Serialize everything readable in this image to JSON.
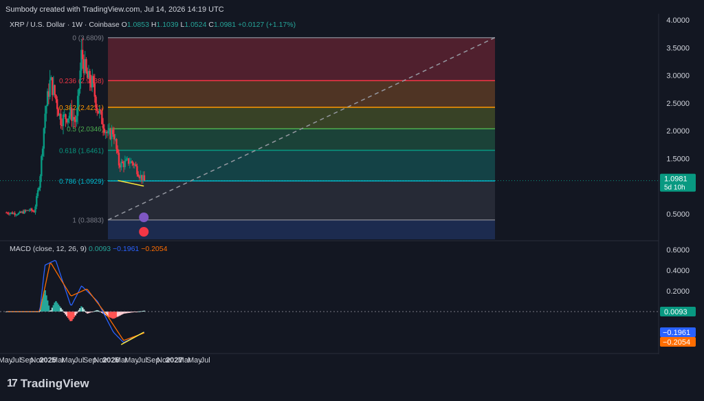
{
  "header": {
    "created_by": "Sumbody created with TradingView.com, Jul 14, 2026 14:19 UTC"
  },
  "legend": {
    "symbol": "XRP / U.S. Dollar · 1W · Coinbase",
    "open_label": "O",
    "open": "1.0853",
    "high_label": "H",
    "high": "1.1039",
    "low_label": "L",
    "low": "1.0524",
    "close_label": "C",
    "close": "1.0981",
    "change": "+0.0127 (+1.17%)"
  },
  "macd_legend": {
    "name": "MACD (close, 12, 26, 9)",
    "hist": "0.0093",
    "macd": "−0.1961",
    "signal": "−0.2054"
  },
  "price_axis": {
    "ticks": [
      "4.0000",
      "3.5000",
      "3.0000",
      "2.5000",
      "2.0000",
      "1.5000",
      "0.5000"
    ],
    "tag_price": "1.0981",
    "tag_countdown": "5d 10h"
  },
  "macd_axis": {
    "ticks": [
      "0.6000",
      "0.4000",
      "0.2000"
    ],
    "tag_hist": "0.0093",
    "tag_macd": "−0.1961",
    "tag_signal": "−0.2054"
  },
  "time_axis": [
    "May",
    "Jul",
    "Sep",
    "Nov",
    "2025",
    "Mar",
    "May",
    "Jul",
    "Sep",
    "Nov",
    "2026",
    "Mar",
    "May",
    "Jul",
    "Sep",
    "Nov",
    "2027",
    "Mar",
    "May",
    "Jul"
  ],
  "fib_levels": [
    {
      "label": "0 (3.6809)",
      "price": 3.6809,
      "color": "#787b86",
      "zone": "#5c2230"
    },
    {
      "label": "0.236 (2.9038)",
      "price": 2.9038,
      "color": "#f23645",
      "zone": "#5a3a24"
    },
    {
      "label": "0.382 (2.4231)",
      "price": 2.4231,
      "color": "#ff9800",
      "zone": "#3f4a27"
    },
    {
      "label": "0.5 (2.0346)",
      "price": 2.0346,
      "color": "#4caf50",
      "zone": "#1d4a3c"
    },
    {
      "label": "0.618 (1.6461)",
      "price": 1.6461,
      "color": "#089981",
      "zone": "#154a4c"
    },
    {
      "label": "0.786 (1.0929)",
      "price": 1.0929,
      "color": "#00bcd4",
      "zone": "#2a2e39"
    },
    {
      "label": "1 (0.3883)",
      "price": 0.3883,
      "color": "#787b86",
      "zone": "#1e2f57"
    }
  ],
  "colors": {
    "background": "#131722",
    "up": "#089981",
    "down": "#f23645",
    "macd_line": "#2962ff",
    "signal_line": "#ff6d00",
    "divergence": "#ffeb3b",
    "price_tag": "#089981"
  },
  "logo": {
    "text": "TradingView",
    "icon": "tradingview-logo-icon"
  },
  "chart_data": [
    {
      "type": "candlestick",
      "title": "XRP / U.S. Dollar · 1W · Coinbase",
      "y_axis_ticks": [
        0.5,
        1.5,
        2.0,
        2.5,
        3.0,
        3.5,
        4.0
      ],
      "ylim": [
        0.05,
        4.05
      ],
      "approx_close_path": [
        [
          "2024-05",
          0.52
        ],
        [
          "2024-07",
          0.5
        ],
        [
          "2024-09",
          0.57
        ],
        [
          "2024-10",
          0.54
        ],
        [
          "2024-11",
          1.1
        ],
        [
          "2024-12",
          2.3
        ],
        [
          "2025-01",
          2.9
        ],
        [
          "2025-02",
          2.6
        ],
        [
          "2025-03",
          2.2
        ],
        [
          "2025-05",
          2.3
        ],
        [
          "2025-06",
          2.15
        ],
        [
          "2025-07",
          3.4
        ],
        [
          "2025-08",
          2.95
        ],
        [
          "2025-09",
          2.85
        ],
        [
          "2025-10",
          2.4
        ],
        [
          "2025-11",
          2.15
        ],
        [
          "2025-12",
          1.9
        ],
        [
          "2026-01",
          2.0
        ],
        [
          "2026-02",
          1.4
        ],
        [
          "2026-03",
          1.4
        ],
        [
          "2026-04",
          1.45
        ],
        [
          "2026-05",
          1.4
        ],
        [
          "2026-06",
          1.2
        ],
        [
          "2026-07",
          1.0981
        ]
      ]
    },
    {
      "type": "line",
      "title": "MACD (close, 12, 26, 9)",
      "y_axis_ticks": [
        0.2,
        0.4,
        0.6
      ],
      "series": [
        {
          "name": "MACD",
          "approx_path": [
            [
              "2024-11",
              0.0
            ],
            [
              "2024-12",
              0.45
            ],
            [
              "2025-02",
              0.5
            ],
            [
              "2025-05",
              0.05
            ],
            [
              "2025-07",
              0.25
            ],
            [
              "2025-10",
              0.1
            ],
            [
              "2026-01",
              -0.2
            ],
            [
              "2026-03",
              -0.3
            ],
            [
              "2026-07",
              -0.1961
            ]
          ]
        },
        {
          "name": "Signal",
          "approx_path": [
            [
              "2024-11",
              0.0
            ],
            [
              "2025-01",
              0.48
            ],
            [
              "2025-05",
              0.15
            ],
            [
              "2025-08",
              0.22
            ],
            [
              "2025-12",
              -0.05
            ],
            [
              "2026-03",
              -0.28
            ],
            [
              "2026-07",
              -0.2054
            ]
          ]
        }
      ],
      "histogram_last": 0.0093
    }
  ]
}
